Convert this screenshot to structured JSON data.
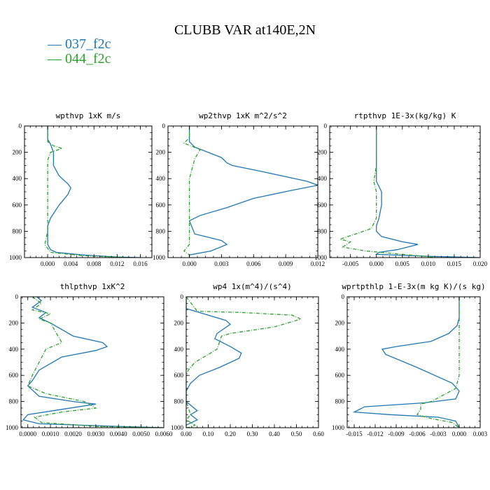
{
  "title": "CLUBB VAR at140E,2N",
  "legend": [
    {
      "label": "— 037_f2c",
      "color": "#1f77b4"
    },
    {
      "label": "— 044_f2c",
      "color": "#2ca02c"
    }
  ],
  "chart_data": [
    {
      "type": "line",
      "title": "wpthvp   1xK m/s",
      "xlim": [
        -0.004,
        0.018
      ],
      "ylim": [
        0,
        1000
      ],
      "y_inverted": true,
      "xticks": [
        0.0,
        0.004,
        0.008,
        0.012,
        0.016
      ],
      "xtick_labels": [
        "0.000",
        "0.004",
        "0.008",
        "0.012",
        "0.016"
      ],
      "yticks": [
        0,
        200,
        400,
        600,
        800,
        1000
      ],
      "ytick_labels": [
        "0",
        "200",
        "400",
        "600",
        "800",
        "1000"
      ],
      "series": [
        {
          "name": "037_f2c",
          "color": "#1f77b4",
          "dashed": false,
          "x": [
            0.0,
            0.0,
            0.0005,
            0.001,
            0.001,
            0.002,
            0.0035,
            0.004,
            0.0035,
            0.002,
            0.0005,
            0.0,
            0.0,
            0.0,
            0.0,
            0.0005,
            0.0015,
            0.006,
            0.012,
            0.016
          ],
          "y": [
            0,
            100,
            140,
            200,
            300,
            380,
            440,
            470,
            520,
            600,
            700,
            760,
            800,
            850,
            900,
            940,
            960,
            980,
            995,
            1000
          ]
        },
        {
          "name": "044_f2c",
          "color": "#2ca02c",
          "dashed": true,
          "x": [
            0.0,
            0.0,
            0.001,
            0.0025,
            0.0005,
            0.0,
            0.0,
            0.0,
            0.0,
            0.0,
            0.0,
            -0.0005,
            0.0005,
            0.006,
            0.014
          ],
          "y": [
            0,
            120,
            150,
            170,
            200,
            260,
            400,
            500,
            600,
            700,
            800,
            900,
            960,
            985,
            1000
          ]
        }
      ]
    },
    {
      "type": "line",
      "title": "wp2thvp   1xK m^2/s^2",
      "xlim": [
        -0.002,
        0.012
      ],
      "ylim": [
        0,
        1000
      ],
      "y_inverted": true,
      "xticks": [
        0.0,
        0.003,
        0.006,
        0.009,
        0.012
      ],
      "xtick_labels": [
        "0.000",
        "0.003",
        "0.006",
        "0.009",
        "0.012"
      ],
      "yticks": [
        0,
        200,
        400,
        600,
        800,
        1000
      ],
      "ytick_labels": [
        "0",
        "200",
        "400",
        "600",
        "800",
        "1000"
      ],
      "series": [
        {
          "name": "037_f2c",
          "color": "#1f77b4",
          "dashed": false,
          "x": [
            0.0,
            0.0,
            0.0005,
            0.003,
            0.0035,
            0.004,
            0.007,
            0.011,
            0.012,
            0.0095,
            0.006,
            0.0035,
            0.001,
            0.0,
            0.0005,
            0.003,
            0.0035,
            0.002,
            0.0,
            0.0
          ],
          "y": [
            0,
            120,
            160,
            240,
            280,
            300,
            350,
            420,
            450,
            490,
            550,
            620,
            680,
            720,
            820,
            870,
            900,
            950,
            980,
            1000
          ]
        },
        {
          "name": "044_f2c",
          "color": "#2ca02c",
          "dashed": true,
          "x": [
            0.0,
            0.0,
            -0.0005,
            0.001,
            0.0005,
            0.0,
            0.0,
            0.0,
            0.0,
            -0.0005,
            0.0,
            0.0
          ],
          "y": [
            0,
            90,
            130,
            180,
            250,
            400,
            600,
            800,
            900,
            950,
            980,
            1000
          ]
        }
      ]
    },
    {
      "type": "line",
      "title": "rtpthvp   1E-3x(kg/kg) K",
      "xlim": [
        -0.009,
        0.02
      ],
      "ylim": [
        0,
        1000
      ],
      "y_inverted": true,
      "xticks": [
        -0.005,
        0.0,
        0.005,
        0.01,
        0.015,
        0.02
      ],
      "xtick_labels": [
        "-0.005",
        "0.000",
        "0.005",
        "0.010",
        "0.015",
        "0.020"
      ],
      "yticks": [
        0,
        200,
        400,
        600,
        800,
        1000
      ],
      "ytick_labels": [
        "0",
        "200",
        "400",
        "600",
        "800",
        "1000"
      ],
      "series": [
        {
          "name": "037_f2c",
          "color": "#1f77b4",
          "dashed": false,
          "x": [
            0.0,
            0.0,
            0.0,
            0.0,
            0.0005,
            0.001,
            0.001,
            0.0005,
            0.0,
            0.0,
            0.001,
            0.005,
            0.008,
            0.004,
            0.0005,
            0.0,
            0.01,
            0.02
          ],
          "y": [
            0,
            200,
            380,
            420,
            460,
            500,
            600,
            700,
            760,
            800,
            840,
            880,
            900,
            940,
            960,
            975,
            990,
            1000
          ]
        },
        {
          "name": "044_f2c",
          "color": "#2ca02c",
          "dashed": true,
          "x": [
            0.0,
            0.0,
            -0.0005,
            0.0,
            0.0,
            -0.001,
            -0.004,
            -0.007,
            -0.005,
            -0.0065,
            -0.002,
            0.005,
            0.012
          ],
          "y": [
            0,
            300,
            420,
            500,
            700,
            780,
            820,
            860,
            880,
            920,
            950,
            975,
            1000
          ]
        }
      ]
    },
    {
      "type": "line",
      "title": "thlpthvp   1xK^2",
      "xlim": [
        -0.0003,
        0.006
      ],
      "ylim": [
        0,
        1000
      ],
      "y_inverted": true,
      "xticks": [
        0.0,
        0.001,
        0.002,
        0.003,
        0.004,
        0.005,
        0.006
      ],
      "xtick_labels": [
        "0.0000",
        "0.0010",
        "0.0020",
        "0.0030",
        "0.0040",
        "0.0050",
        "0.0060"
      ],
      "yticks": [
        0,
        200,
        400,
        600,
        800,
        1000
      ],
      "ytick_labels": [
        "0",
        "200",
        "400",
        "600",
        "800",
        "1000"
      ],
      "series": [
        {
          "name": "037_f2c",
          "color": "#1f77b4",
          "dashed": false,
          "x": [
            0.0004,
            0.0006,
            0.0002,
            0.0008,
            0.0005,
            0.001,
            0.002,
            0.0033,
            0.0035,
            0.003,
            0.0015,
            0.0005,
            0.0002,
            0.0,
            0.0005,
            0.002,
            0.003,
            0.0015,
            0.0,
            -0.0002,
            0.0005,
            0.004,
            0.006
          ],
          "y": [
            0,
            30,
            80,
            120,
            160,
            200,
            300,
            350,
            380,
            410,
            460,
            560,
            640,
            680,
            760,
            800,
            820,
            860,
            900,
            940,
            970,
            990,
            1000
          ]
        },
        {
          "name": "044_f2c",
          "color": "#2ca02c",
          "dashed": true,
          "x": [
            0.0002,
            0.0006,
            0.0002,
            0.001,
            0.0005,
            0.001,
            0.0015,
            0.0008,
            0.0005,
            0.0002,
            0.0,
            0.0008,
            0.0025,
            0.003,
            0.0015,
            0.0003,
            0.0006,
            0.003,
            0.006
          ],
          "y": [
            0,
            50,
            100,
            130,
            170,
            200,
            350,
            400,
            500,
            600,
            680,
            740,
            800,
            850,
            880,
            920,
            960,
            990,
            1000
          ]
        }
      ]
    },
    {
      "type": "line",
      "title": "wp4   1x(m^4)/(s^4)",
      "xlim": [
        0.0,
        0.6
      ],
      "ylim": [
        0,
        1000
      ],
      "y_inverted": true,
      "xticks": [
        0.0,
        0.1,
        0.2,
        0.3,
        0.4,
        0.5,
        0.6
      ],
      "xtick_labels": [
        "0.00",
        "0.10",
        "0.20",
        "0.30",
        "0.40",
        "0.50",
        "0.60"
      ],
      "yticks": [
        0,
        200,
        400,
        600,
        800,
        1000
      ],
      "ytick_labels": [
        "0",
        "200",
        "400",
        "600",
        "800",
        "1000"
      ],
      "series": [
        {
          "name": "037_f2c",
          "color": "#1f77b4",
          "dashed": false,
          "x": [
            0.0,
            0.0,
            0.1,
            0.18,
            0.2,
            0.14,
            0.13,
            0.2,
            0.25,
            0.24,
            0.15,
            0.06,
            0.02,
            0.0,
            0.0,
            0.05,
            0.02,
            0.05,
            0.0,
            0.0
          ],
          "y": [
            0,
            90,
            140,
            180,
            210,
            280,
            320,
            380,
            430,
            470,
            540,
            600,
            660,
            720,
            800,
            870,
            900,
            940,
            980,
            1000
          ]
        },
        {
          "name": "044_f2c",
          "color": "#2ca02c",
          "dashed": true,
          "x": [
            0.0,
            0.05,
            0.25,
            0.48,
            0.52,
            0.4,
            0.2,
            0.16,
            0.14,
            0.1,
            0.04,
            0.01,
            0.0,
            0.0,
            0.02,
            0.0,
            0.04,
            0.02,
            0.0
          ],
          "y": [
            0,
            110,
            120,
            140,
            170,
            230,
            280,
            300,
            400,
            440,
            500,
            560,
            600,
            800,
            900,
            940,
            980,
            995,
            1000
          ]
        }
      ]
    },
    {
      "type": "line",
      "title": "wprtpthlp   1-E-3x(m kg K)/(s kg)",
      "xlim": [
        -0.016,
        0.003
      ],
      "ylim": [
        0,
        1000
      ],
      "y_inverted": true,
      "xticks": [
        -0.015,
        -0.012,
        -0.009,
        -0.006,
        -0.003,
        0.0,
        0.003
      ],
      "xtick_labels": [
        "-0.015",
        "-0.012",
        "-0.009",
        "-0.006",
        "-0.003",
        "0.000",
        "0.003"
      ],
      "yticks": [
        0,
        200,
        400,
        600,
        800,
        1000
      ],
      "ytick_labels": [
        "0",
        "200",
        "400",
        "600",
        "800",
        "1000"
      ],
      "series": [
        {
          "name": "037_f2c",
          "color": "#1f77b4",
          "dashed": false,
          "x": [
            0.0,
            0.0,
            -0.0003,
            -0.0015,
            -0.004,
            -0.009,
            -0.011,
            -0.0105,
            -0.006,
            -0.001,
            0.0,
            -0.0005,
            -0.005,
            -0.0135,
            -0.015,
            -0.01,
            -0.003,
            -0.0005,
            0.0
          ],
          "y": [
            0,
            160,
            220,
            280,
            340,
            380,
            400,
            440,
            540,
            660,
            720,
            780,
            810,
            840,
            880,
            900,
            920,
            950,
            1000
          ]
        },
        {
          "name": "044_f2c",
          "color": "#2ca02c",
          "dashed": true,
          "x": [
            0.0,
            0.0,
            0.0,
            0.0,
            -0.0005,
            -0.004,
            -0.0055,
            -0.0055,
            -0.006,
            -0.004,
            -0.001,
            0.0
          ],
          "y": [
            0,
            200,
            400,
            600,
            700,
            800,
            820,
            860,
            900,
            930,
            960,
            1000
          ]
        }
      ]
    }
  ]
}
